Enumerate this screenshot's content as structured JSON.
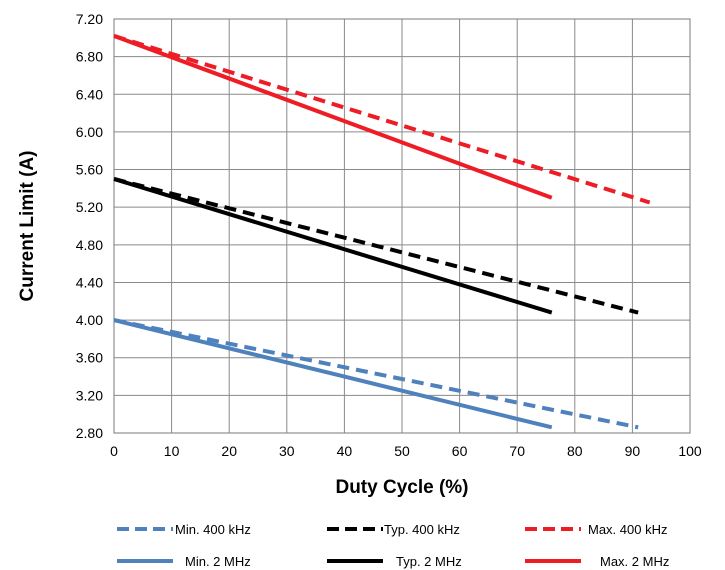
{
  "chart_data": {
    "type": "line",
    "title": "",
    "xlabel": "Duty Cycle (%)",
    "ylabel": "Current Limit (A)",
    "xlim": [
      0,
      100
    ],
    "ylim": [
      2.8,
      7.2
    ],
    "x_ticks": [
      "0",
      "10",
      "20",
      "30",
      "40",
      "50",
      "60",
      "70",
      "80",
      "90",
      "100"
    ],
    "y_ticks": [
      "2.80",
      "3.20",
      "3.60",
      "4.00",
      "4.40",
      "4.80",
      "5.20",
      "5.60",
      "6.00",
      "6.40",
      "6.80",
      "7.20"
    ],
    "grid": true,
    "legend_position": "bottom",
    "series": [
      {
        "name": "Min. 400 kHz",
        "color": "#4f81bd",
        "dash": "dashed",
        "x": [
          0,
          91
        ],
        "y": [
          4.0,
          2.86
        ]
      },
      {
        "name": "Typ. 400 kHz",
        "color": "#000000",
        "dash": "dashed",
        "x": [
          0,
          91
        ],
        "y": [
          5.5,
          4.08
        ]
      },
      {
        "name": "Max. 400 kHz",
        "color": "#ee1c25",
        "dash": "dashed",
        "x": [
          0,
          93
        ],
        "y": [
          7.02,
          5.25
        ]
      },
      {
        "name": "Min. 2 MHz",
        "color": "#4f81bd",
        "dash": "solid",
        "x": [
          0,
          76
        ],
        "y": [
          4.0,
          2.86
        ]
      },
      {
        "name": "Typ. 2 MHz",
        "color": "#000000",
        "dash": "solid",
        "x": [
          0,
          76
        ],
        "y": [
          5.5,
          4.08
        ]
      },
      {
        "name": "Max. 2 MHz",
        "color": "#ee1c25",
        "dash": "solid",
        "x": [
          0,
          76
        ],
        "y": [
          7.02,
          5.3
        ]
      }
    ]
  }
}
